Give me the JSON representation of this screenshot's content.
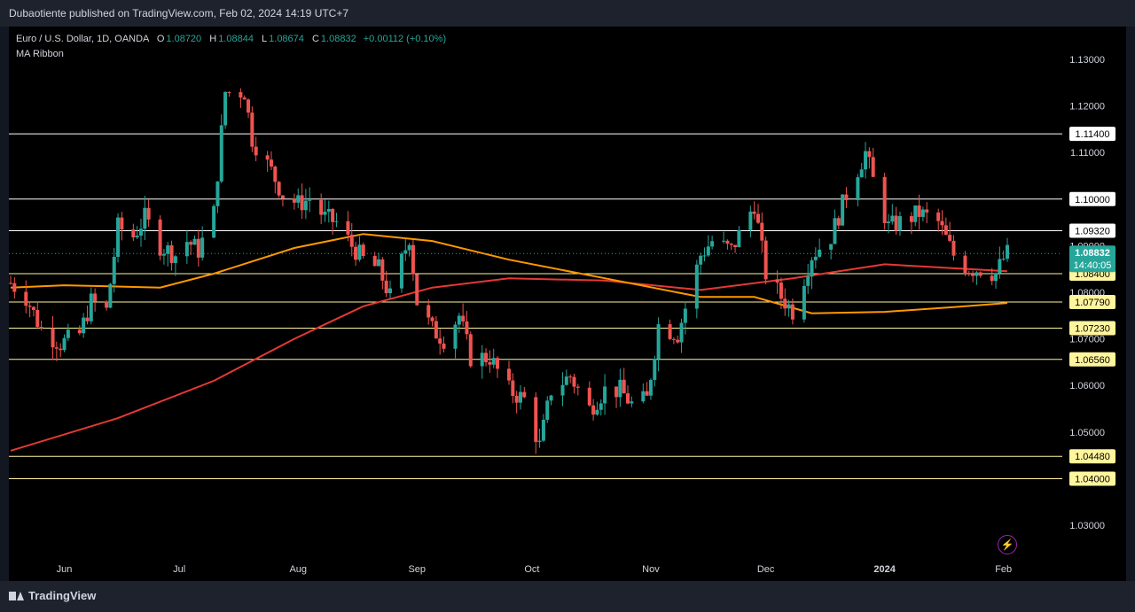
{
  "header": {
    "published_by": "Dubaotiente published on TradingView.com, Feb 02, 2024 14:19 UTC+7"
  },
  "legend": {
    "symbol": "Euro / U.S. Dollar, 1D, OANDA",
    "o_label": "O",
    "o_value": "1.08720",
    "h_label": "H",
    "h_value": "1.08844",
    "l_label": "L",
    "l_value": "1.08674",
    "c_label": "C",
    "c_value": "1.08832",
    "change": "+0.00112 (+0.10%)",
    "indicator": "MA Ribbon"
  },
  "footer": {
    "brand": "TradingView"
  },
  "chart_data": {
    "type": "line",
    "title": "Euro / U.S. Dollar, 1D, OANDA",
    "ylim": [
      1.0245,
      1.1355
    ],
    "y_ticks": [
      "1.13000",
      "1.12000",
      "1.11000",
      "1.10000",
      "1.09000",
      "1.08000",
      "1.07000",
      "1.06000",
      "1.05000",
      "1.04000",
      "1.03000"
    ],
    "x_ticks": [
      {
        "label": "Jun",
        "date": "2023-06-01"
      },
      {
        "label": "Jul",
        "date": "2023-07-01"
      },
      {
        "label": "Aug",
        "date": "2023-08-01"
      },
      {
        "label": "Sep",
        "date": "2023-09-01"
      },
      {
        "label": "Oct",
        "date": "2023-10-01"
      },
      {
        "label": "Nov",
        "date": "2023-11-01"
      },
      {
        "label": "Dec",
        "date": "2023-12-01"
      },
      {
        "label": "2024",
        "date": "2024-01-01"
      },
      {
        "label": "Feb",
        "date": "2024-02-01"
      }
    ],
    "levels": [
      {
        "value": 1.114,
        "label": "1.11400",
        "color": "#ffffff",
        "label_bg": "#ffffff"
      },
      {
        "value": 1.1,
        "label": "1.10000",
        "color": "#ffffff",
        "label_bg": "#ffffff"
      },
      {
        "value": 1.0932,
        "label": "1.09320",
        "color": "#ffffff",
        "label_bg": "#ffffff"
      },
      {
        "value": 1.084,
        "label": "1.08400",
        "color": "#fff59d",
        "label_bg": "#fff59d"
      },
      {
        "value": 1.0779,
        "label": "1.07790",
        "color": "#fff59d",
        "label_bg": "#fff59d"
      },
      {
        "value": 1.0723,
        "label": "1.07230",
        "color": "#fff59d",
        "label_bg": "#fff59d"
      },
      {
        "value": 1.0656,
        "label": "1.06560",
        "color": "#fff59d",
        "label_bg": "#fff59d"
      },
      {
        "value": 1.0448,
        "label": "1.04480",
        "color": "#fff59d",
        "label_bg": "#fff59d"
      },
      {
        "value": 1.04,
        "label": "1.04000",
        "color": "#fff59d",
        "label_bg": "#fff59d"
      }
    ],
    "last_price": {
      "value": 1.08832,
      "label": "1.08832",
      "countdown": "14:40:05",
      "color": "#26a69a"
    },
    "candle_colors": {
      "up": "#26a69a",
      "down": "#ef5350"
    },
    "close_path": [
      [
        "2023-05-18",
        1.082
      ],
      [
        "2023-05-22",
        1.079
      ],
      [
        "2023-05-26",
        1.072
      ],
      [
        "2023-05-31",
        1.069
      ],
      [
        "2023-06-05",
        1.071
      ],
      [
        "2023-06-08",
        1.078
      ],
      [
        "2023-06-12",
        1.076
      ],
      [
        "2023-06-15",
        1.094
      ],
      [
        "2023-06-19",
        1.092
      ],
      [
        "2023-06-22",
        1.096
      ],
      [
        "2023-06-26",
        1.09
      ],
      [
        "2023-06-30",
        1.088
      ],
      [
        "2023-07-03",
        1.091
      ],
      [
        "2023-07-06",
        1.089
      ],
      [
        "2023-07-10",
        1.097
      ],
      [
        "2023-07-13",
        1.123
      ],
      [
        "2023-07-18",
        1.123
      ],
      [
        "2023-07-20",
        1.113
      ],
      [
        "2023-07-25",
        1.106
      ],
      [
        "2023-07-28",
        1.101
      ],
      [
        "2023-08-01",
        1.099
      ],
      [
        "2023-08-04",
        1.1
      ],
      [
        "2023-08-08",
        1.096
      ],
      [
        "2023-08-11",
        1.095
      ],
      [
        "2023-08-15",
        1.09
      ],
      [
        "2023-08-18",
        1.087
      ],
      [
        "2023-08-22",
        1.085
      ],
      [
        "2023-08-25",
        1.079
      ],
      [
        "2023-08-30",
        1.092
      ],
      [
        "2023-09-01",
        1.078
      ],
      [
        "2023-09-05",
        1.072
      ],
      [
        "2023-09-08",
        1.07
      ],
      [
        "2023-09-12",
        1.075
      ],
      [
        "2023-09-15",
        1.066
      ],
      [
        "2023-09-20",
        1.066
      ],
      [
        "2023-09-25",
        1.059
      ],
      [
        "2023-09-29",
        1.057
      ],
      [
        "2023-10-03",
        1.047
      ],
      [
        "2023-10-06",
        1.059
      ],
      [
        "2023-10-11",
        1.062
      ],
      [
        "2023-10-16",
        1.055
      ],
      [
        "2023-10-20",
        1.059
      ],
      [
        "2023-10-24",
        1.059
      ],
      [
        "2023-10-27",
        1.056
      ],
      [
        "2023-10-31",
        1.057
      ],
      [
        "2023-11-03",
        1.073
      ],
      [
        "2023-11-08",
        1.071
      ],
      [
        "2023-11-14",
        1.088
      ],
      [
        "2023-11-17",
        1.091
      ],
      [
        "2023-11-22",
        1.089
      ],
      [
        "2023-11-28",
        1.099
      ],
      [
        "2023-12-01",
        1.084
      ],
      [
        "2023-12-05",
        1.079
      ],
      [
        "2023-12-08",
        1.076
      ],
      [
        "2023-12-13",
        1.088
      ],
      [
        "2023-12-18",
        1.092
      ],
      [
        "2023-12-22",
        1.101
      ],
      [
        "2023-12-27",
        1.11
      ],
      [
        "2023-12-29",
        1.104
      ],
      [
        "2024-01-02",
        1.094
      ],
      [
        "2024-01-05",
        1.095
      ],
      [
        "2024-01-10",
        1.097
      ],
      [
        "2024-01-15",
        1.095
      ],
      [
        "2024-01-19",
        1.088
      ],
      [
        "2024-01-23",
        1.085
      ],
      [
        "2024-01-26",
        1.085
      ],
      [
        "2024-01-30",
        1.084
      ],
      [
        "2024-02-01",
        1.0872
      ],
      [
        "2024-02-02",
        1.0883
      ]
    ],
    "series": [
      {
        "name": "MA Ribbon (red)",
        "color": "#e53935",
        "values": [
          [
            "2023-05-18",
            1.046
          ],
          [
            "2023-06-15",
            1.053
          ],
          [
            "2023-07-10",
            1.061
          ],
          [
            "2023-07-31",
            1.07
          ],
          [
            "2023-08-18",
            1.077
          ],
          [
            "2023-09-05",
            1.081
          ],
          [
            "2023-09-25",
            1.083
          ],
          [
            "2023-10-20",
            1.0825
          ],
          [
            "2023-11-14",
            1.0805
          ],
          [
            "2023-12-08",
            1.083
          ],
          [
            "2024-01-01",
            1.086
          ],
          [
            "2024-02-02",
            1.0845
          ]
        ]
      },
      {
        "name": "MA Ribbon (orange)",
        "color": "#ff9800",
        "values": [
          [
            "2023-05-18",
            1.081
          ],
          [
            "2023-06-01",
            1.0815
          ],
          [
            "2023-06-26",
            1.081
          ],
          [
            "2023-07-10",
            1.084
          ],
          [
            "2023-07-31",
            1.0895
          ],
          [
            "2023-08-18",
            1.0925
          ],
          [
            "2023-09-05",
            1.091
          ],
          [
            "2023-09-25",
            1.087
          ],
          [
            "2023-10-20",
            1.083
          ],
          [
            "2023-11-14",
            1.079
          ],
          [
            "2023-11-28",
            1.079
          ],
          [
            "2023-12-13",
            1.0755
          ],
          [
            "2024-01-01",
            1.0758
          ],
          [
            "2024-01-19",
            1.0768
          ],
          [
            "2024-02-02",
            1.0777
          ]
        ]
      }
    ],
    "date_range": [
      "2023-05-18",
      "2024-02-02"
    ],
    "grid": false
  },
  "icons": {
    "bolt": "lightning-icon"
  }
}
